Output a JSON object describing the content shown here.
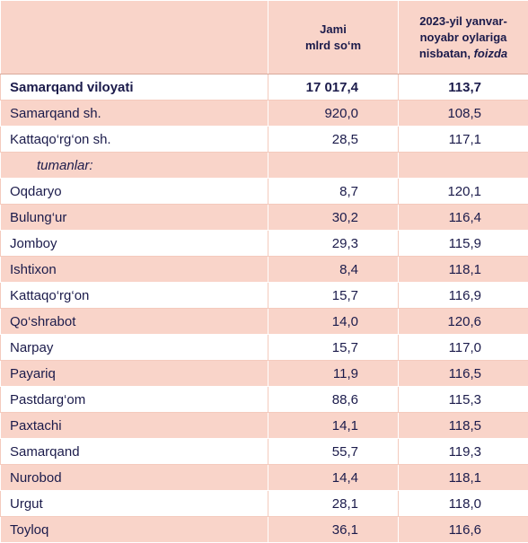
{
  "header": {
    "total": [
      "Jami",
      "mlrd so‘m"
    ],
    "change": [
      "2023-yil yanvar-",
      "noyabr oylariga",
      "nisbatan,",
      "foizda"
    ]
  },
  "rows": [
    [
      "Samarqand viloyati",
      "17 017,4",
      "113,7"
    ],
    [
      "Samarqand sh.",
      "920,0",
      "108,5"
    ],
    [
      "Kattaqo‘rg‘on sh.",
      "28,5",
      "117,1"
    ],
    [
      "tumanlar:"
    ],
    [
      "Oqdaryo",
      "8,7",
      "120,1"
    ],
    [
      "Bulung‘ur",
      "30,2",
      "116,4"
    ],
    [
      "Jomboy",
      "29,3",
      "115,9"
    ],
    [
      "Ishtixon",
      "8,4",
      "118,1"
    ],
    [
      "Kattaqo‘rg‘on",
      "15,7",
      "116,9"
    ],
    [
      "Qo‘shrabot",
      "14,0",
      "120,6"
    ],
    [
      "Narpay",
      "15,7",
      "117,0"
    ],
    [
      "Payariq",
      "11,9",
      "116,5"
    ],
    [
      "Pastdarg‘om",
      "88,6",
      "115,3"
    ],
    [
      "Paxtachi",
      "14,1",
      "118,5"
    ],
    [
      "Samarqand",
      "55,7",
      "119,3"
    ],
    [
      "Nurobod",
      "14,4",
      "118,1"
    ],
    [
      "Urgut",
      "28,1",
      "118,0"
    ],
    [
      "Toyloq",
      "36,1",
      "116,6"
    ]
  ]
}
